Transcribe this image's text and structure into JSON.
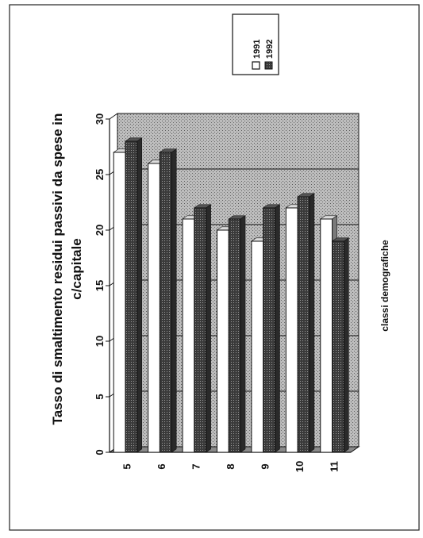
{
  "chart_data": {
    "type": "bar",
    "orientation": "rotated-90-ccw",
    "title_lines": [
      "Tasso di smaltimento residui passivi da spese in",
      "c/capitale"
    ],
    "xlabel": "classi demografiche",
    "ylabel": "",
    "categories": [
      "5",
      "6",
      "7",
      "8",
      "9",
      "10",
      "11"
    ],
    "ylim": [
      0,
      30
    ],
    "yticks": [
      "0",
      "5",
      "10",
      "15",
      "20",
      "25",
      "30"
    ],
    "series": [
      {
        "name": "1991",
        "values": [
          27,
          26,
          21,
          20,
          19,
          22,
          21
        ],
        "color": "#ffffff"
      },
      {
        "name": "1992",
        "values": [
          28,
          27,
          22,
          21,
          22,
          23,
          19
        ],
        "color": "#1a1a1a"
      }
    ],
    "legend_position": "top-right",
    "grid": true,
    "style": "3d-bars, hatched background"
  }
}
